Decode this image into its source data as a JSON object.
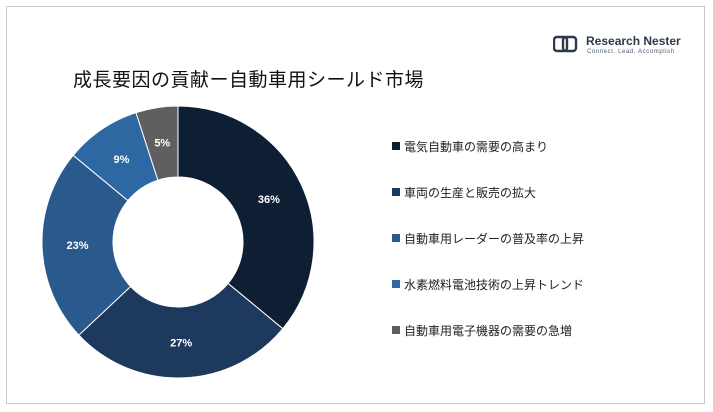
{
  "chart_data": {
    "type": "pie",
    "variant": "donut",
    "title": "成長要因の貢献ー自動車用シールド市場",
    "categories": [
      "電気自動車の需要の高まり",
      "車両の生産と販売の拡大",
      "自動車用レーダーの普及率の上昇",
      "水素燃料電池技術の上昇トレンド",
      "自動車用電子機器の需要の急増"
    ],
    "values": [
      36,
      27,
      23,
      9,
      5
    ],
    "data_labels": [
      "36%",
      "27%",
      "23%",
      "9%",
      "5%"
    ],
    "colors": [
      "#0f1f33",
      "#1d3a5e",
      "#2a5a8d",
      "#2e68a3",
      "#5f5f5f"
    ],
    "legend_position": "right"
  },
  "brand": {
    "name": "Research Nester",
    "tagline": "Connect. Lead. Accomplish"
  }
}
